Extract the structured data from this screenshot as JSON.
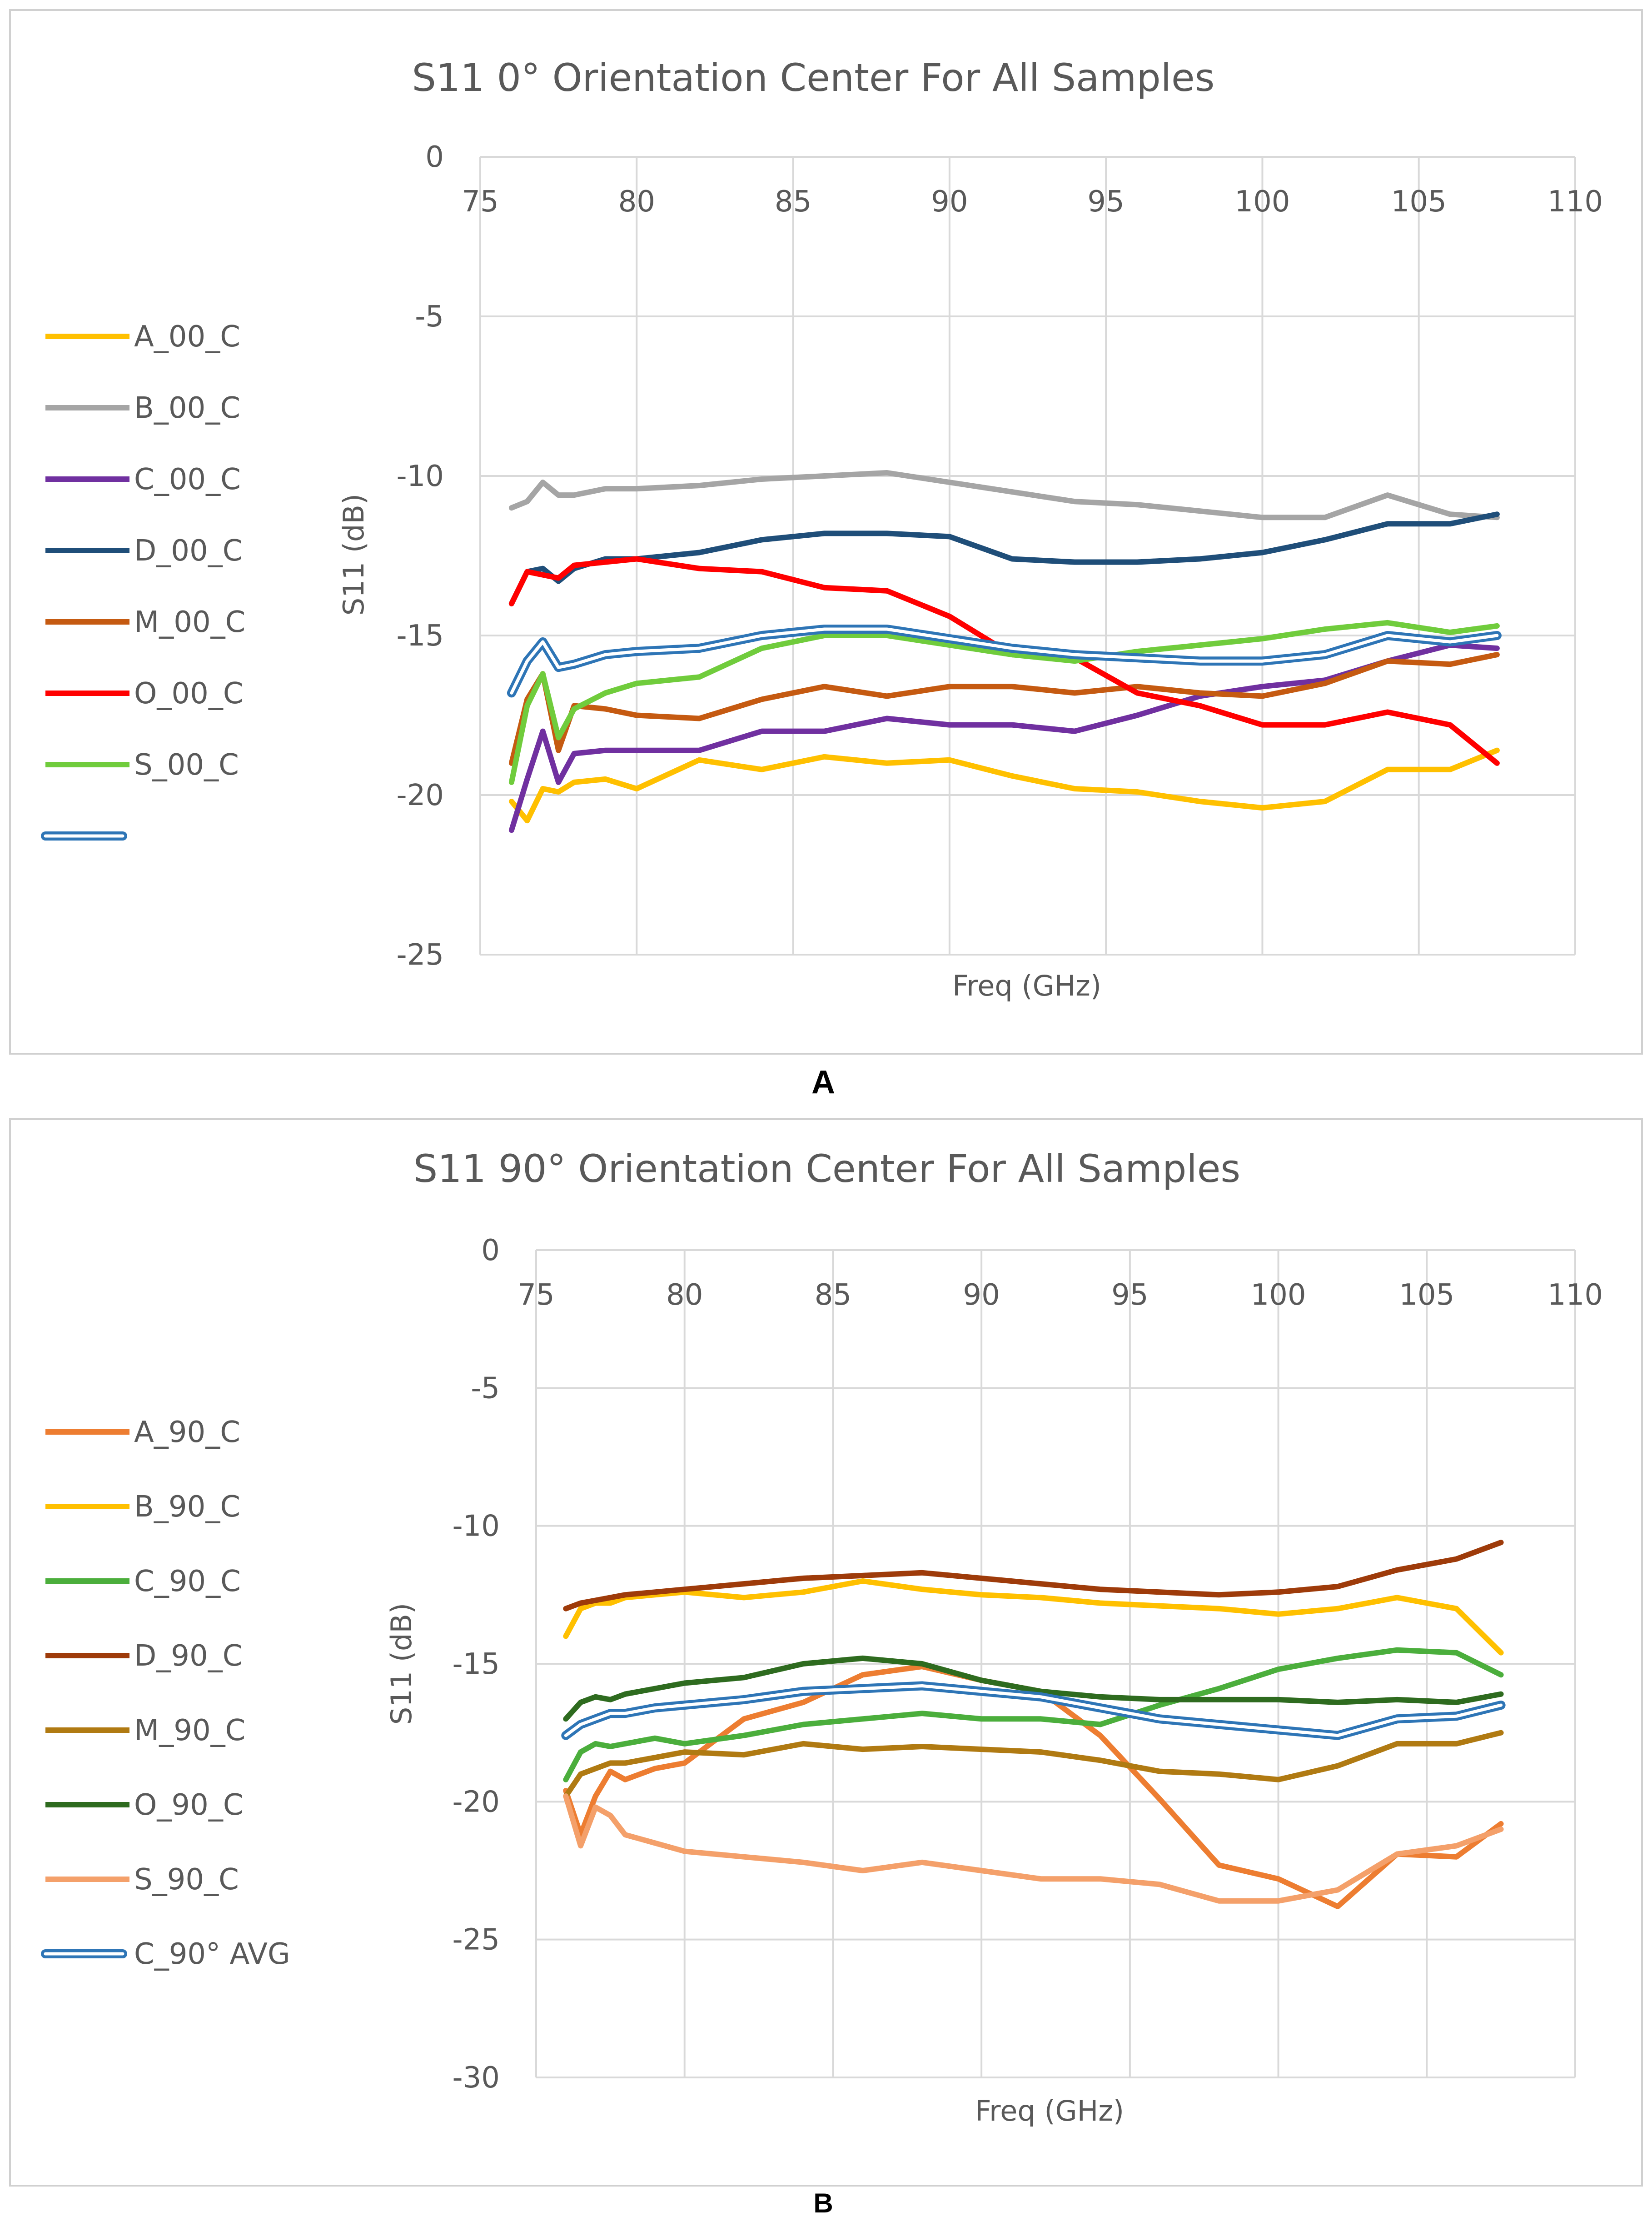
{
  "panels": [
    "A",
    "B"
  ],
  "chart_data": [
    {
      "type": "line",
      "title": "S11 0° Orientation Center For All Samples",
      "xlabel": "Freq (GHz)",
      "ylabel": "S11 (dB)",
      "xlim": [
        75,
        110
      ],
      "ylim": [
        -25,
        0
      ],
      "x_ticks": [
        "75",
        "80",
        "85",
        "90",
        "95",
        "100",
        "105",
        "110"
      ],
      "y_ticks": [
        "0",
        "-5",
        "-10",
        "-15",
        "-20",
        "-25"
      ],
      "grid": true,
      "legend_position": "left",
      "x": [
        76,
        76.5,
        77,
        77.5,
        78,
        79,
        80,
        82,
        84,
        86,
        88,
        90,
        92,
        94,
        96,
        98,
        100,
        102,
        104,
        106,
        107.5
      ],
      "series": [
        {
          "name": "A_00_C",
          "color": "#FFC000",
          "values": [
            -20.2,
            -20.8,
            -19.8,
            -19.9,
            -19.6,
            -19.5,
            -19.8,
            -18.9,
            -19.2,
            -18.8,
            -19.0,
            -18.9,
            -19.4,
            -19.8,
            -19.9,
            -20.2,
            -20.4,
            -20.2,
            -19.2,
            -19.2,
            -18.6
          ]
        },
        {
          "name": "B_00_C",
          "color": "#A5A5A5",
          "values": [
            -11.0,
            -10.8,
            -10.2,
            -10.6,
            -10.6,
            -10.4,
            -10.4,
            -10.3,
            -10.1,
            -10.0,
            -9.9,
            -10.2,
            -10.5,
            -10.8,
            -10.9,
            -11.1,
            -11.3,
            -11.3,
            -10.6,
            -11.2,
            -11.3
          ]
        },
        {
          "name": "C_00_C",
          "color": "#7030A0",
          "values": [
            -21.1,
            -19.5,
            -18.0,
            -19.6,
            -18.7,
            -18.6,
            -18.6,
            -18.6,
            -18.0,
            -18.0,
            -17.6,
            -17.8,
            -17.8,
            -18.0,
            -17.5,
            -16.9,
            -16.6,
            -16.4,
            -15.8,
            -15.3,
            -15.4
          ]
        },
        {
          "name": "D_00_C",
          "color": "#1F4E79",
          "values": [
            -14.0,
            -13.0,
            -12.9,
            -13.3,
            -12.9,
            -12.6,
            -12.6,
            -12.4,
            -12.0,
            -11.8,
            -11.8,
            -11.9,
            -12.6,
            -12.7,
            -12.7,
            -12.6,
            -12.4,
            -12.0,
            -11.5,
            -11.5,
            -11.2
          ]
        },
        {
          "name": "M_00_C",
          "color": "#C55A11",
          "values": [
            -19.0,
            -17.0,
            -16.2,
            -18.6,
            -17.2,
            -17.3,
            -17.5,
            -17.6,
            -17.0,
            -16.6,
            -16.9,
            -16.6,
            -16.6,
            -16.8,
            -16.6,
            -16.8,
            -16.9,
            -16.5,
            -15.8,
            -15.9,
            -15.6
          ]
        },
        {
          "name": "O_00_C",
          "color": "#FF0000",
          "values": [
            -14.0,
            -13.0,
            -13.1,
            -13.2,
            -12.8,
            -12.7,
            -12.6,
            -12.9,
            -13.0,
            -13.5,
            -13.6,
            -14.4,
            -15.6,
            -15.7,
            -16.8,
            -17.2,
            -17.8,
            -17.8,
            -17.4,
            -17.8,
            -19.0
          ]
        },
        {
          "name": "S_00_C",
          "color": "#70CC3C",
          "values": [
            -19.6,
            -17.2,
            -16.2,
            -18.2,
            -17.3,
            -16.8,
            -16.5,
            -16.3,
            -15.4,
            -15.0,
            -15.0,
            -15.3,
            -15.6,
            -15.8,
            -15.5,
            -15.3,
            -15.1,
            -14.8,
            -14.6,
            -14.9,
            -14.7
          ]
        },
        {
          "name": "",
          "color": "#2E75B6",
          "double": true,
          "values": [
            -16.8,
            -15.8,
            -15.2,
            -16.0,
            -15.9,
            -15.6,
            -15.5,
            -15.4,
            -15.0,
            -14.8,
            -14.8,
            -15.1,
            -15.4,
            -15.6,
            -15.7,
            -15.8,
            -15.8,
            -15.6,
            -15.0,
            -15.2,
            -15.0
          ]
        }
      ]
    },
    {
      "type": "line",
      "title": "S11 90° Orientation Center For All Samples",
      "xlabel": "Freq (GHz)",
      "ylabel": "S11 (dB)",
      "xlim": [
        75,
        110
      ],
      "ylim": [
        -30,
        0
      ],
      "x_ticks": [
        "75",
        "80",
        "85",
        "90",
        "95",
        "100",
        "105",
        "110"
      ],
      "y_ticks": [
        "0",
        "-5",
        "-10",
        "-15",
        "-20",
        "-25",
        "-30"
      ],
      "grid": true,
      "legend_position": "left",
      "x": [
        76,
        76.5,
        77,
        77.5,
        78,
        79,
        80,
        82,
        84,
        86,
        88,
        90,
        92,
        94,
        96,
        98,
        100,
        102,
        104,
        106,
        107.5
      ],
      "series": [
        {
          "name": "A_90_C",
          "color": "#ED7D31",
          "values": [
            -19.6,
            -21.2,
            -19.8,
            -18.9,
            -19.2,
            -18.8,
            -18.6,
            -17.0,
            -16.4,
            -15.4,
            -15.1,
            -15.6,
            -16.0,
            -17.6,
            -19.9,
            -22.3,
            -22.8,
            -23.8,
            -21.9,
            -22.0,
            -20.8
          ]
        },
        {
          "name": "B_90_C",
          "color": "#FFC000",
          "values": [
            -14.0,
            -13.0,
            -12.8,
            -12.8,
            -12.6,
            -12.5,
            -12.4,
            -12.6,
            -12.4,
            -12.0,
            -12.3,
            -12.5,
            -12.6,
            -12.8,
            -12.9,
            -13.0,
            -13.2,
            -13.0,
            -12.6,
            -13.0,
            -14.6
          ]
        },
        {
          "name": "C_90_C",
          "color": "#4BAE3C",
          "values": [
            -19.2,
            -18.2,
            -17.9,
            -18.0,
            -17.9,
            -17.7,
            -17.9,
            -17.6,
            -17.2,
            -17.0,
            -16.8,
            -17.0,
            -17.0,
            -17.2,
            -16.5,
            -15.9,
            -15.2,
            -14.8,
            -14.5,
            -14.6,
            -15.4
          ]
        },
        {
          "name": "D_90_C",
          "color": "#9E3B0A",
          "values": [
            -13.0,
            -12.8,
            -12.7,
            -12.6,
            -12.5,
            -12.4,
            -12.3,
            -12.1,
            -11.9,
            -11.8,
            -11.7,
            -11.9,
            -12.1,
            -12.3,
            -12.4,
            -12.5,
            -12.4,
            -12.2,
            -11.6,
            -11.2,
            -10.6
          ]
        },
        {
          "name": "M_90_C",
          "color": "#B07A12",
          "values": [
            -19.8,
            -19.0,
            -18.8,
            -18.6,
            -18.6,
            -18.4,
            -18.2,
            -18.3,
            -17.9,
            -18.1,
            -18.0,
            -18.1,
            -18.2,
            -18.5,
            -18.9,
            -19.0,
            -19.2,
            -18.7,
            -17.9,
            -17.9,
            -17.5
          ]
        },
        {
          "name": "O_90_C",
          "color": "#2E6B1F",
          "values": [
            -17.0,
            -16.4,
            -16.2,
            -16.3,
            -16.1,
            -15.9,
            -15.7,
            -15.5,
            -15.0,
            -14.8,
            -15.0,
            -15.6,
            -16.0,
            -16.2,
            -16.3,
            -16.3,
            -16.3,
            -16.4,
            -16.3,
            -16.4,
            -16.1
          ]
        },
        {
          "name": "S_90_C",
          "color": "#F4A06A",
          "values": [
            -19.8,
            -21.6,
            -20.2,
            -20.5,
            -21.2,
            -21.5,
            -21.8,
            -22.0,
            -22.2,
            -22.5,
            -22.2,
            -22.5,
            -22.8,
            -22.8,
            -23.0,
            -23.6,
            -23.6,
            -23.2,
            -21.9,
            -21.6,
            -21.0
          ]
        },
        {
          "name": "C_90° AVG",
          "color": "#2E75B6",
          "double": true,
          "values": [
            -17.6,
            -17.2,
            -17.0,
            -16.8,
            -16.8,
            -16.6,
            -16.5,
            -16.3,
            -16.0,
            -15.9,
            -15.8,
            -16.0,
            -16.2,
            -16.6,
            -17.0,
            -17.2,
            -17.4,
            -17.6,
            -17.0,
            -16.9,
            -16.5
          ]
        }
      ]
    }
  ]
}
